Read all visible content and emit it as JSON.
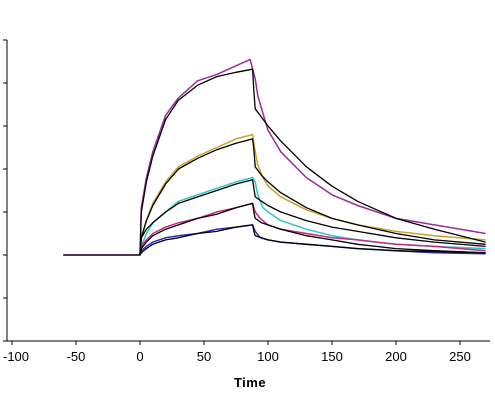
{
  "chart_data": {
    "type": "line",
    "title": "",
    "xlabel": "Time",
    "ylabel": "",
    "xlim": [
      -100,
      270
    ],
    "ylim": [
      0,
      70
    ],
    "xticks": [
      -100,
      -50,
      0,
      50,
      100,
      150,
      200,
      250
    ],
    "yticks": [
      0,
      10,
      20,
      30,
      40,
      50,
      60,
      70
    ],
    "x_tick_labels": [
      "-100",
      "-50",
      "0",
      "50",
      "100",
      "150",
      "200",
      "250"
    ],
    "legend": "none",
    "grid": false,
    "series": [
      {
        "role": "measured",
        "color": "#9b2b9b",
        "x": [
          -60,
          -30,
          -1,
          0,
          1,
          5,
          10,
          20,
          30,
          45,
          60,
          75,
          86,
          90,
          92,
          96,
          100,
          110,
          130,
          150,
          170,
          200,
          230,
          270
        ],
        "y": [
          20,
          20,
          20,
          20,
          31,
          38,
          44,
          52.5,
          56.5,
          60.5,
          62,
          64,
          65.5,
          61,
          57,
          53,
          49,
          44,
          38,
          34,
          31.5,
          28.5,
          27,
          25
        ]
      },
      {
        "role": "fit",
        "color": "#000000",
        "x": [
          -60,
          -30,
          -1,
          0,
          1,
          5,
          10,
          20,
          30,
          45,
          60,
          75,
          88,
          89,
          90,
          95,
          100,
          110,
          130,
          150,
          170,
          200,
          230,
          270
        ],
        "y": [
          20,
          20,
          20,
          20,
          30,
          37,
          43,
          51.5,
          56,
          59.5,
          61.5,
          62.5,
          63.2,
          58,
          54,
          52,
          50,
          46.5,
          40.5,
          36,
          32.5,
          28.5,
          26,
          23
        ]
      },
      {
        "role": "measured",
        "color": "#c9a227",
        "x": [
          0,
          1,
          5,
          10,
          20,
          30,
          45,
          60,
          75,
          88,
          90,
          92,
          96,
          100,
          110,
          130,
          150,
          170,
          200,
          230,
          270
        ],
        "y": [
          20,
          24,
          28,
          32,
          37,
          40.5,
          43,
          45,
          47,
          48,
          44,
          41,
          38,
          36,
          33.5,
          30.5,
          28.5,
          27,
          25.5,
          24.5,
          23.5
        ]
      },
      {
        "role": "fit",
        "color": "#000000",
        "x": [
          0,
          1,
          5,
          10,
          20,
          30,
          45,
          60,
          75,
          88,
          89,
          90,
          95,
          100,
          110,
          130,
          150,
          170,
          200,
          230,
          270
        ],
        "y": [
          20,
          24,
          28,
          31.5,
          36.5,
          40,
          42.5,
          44.5,
          46,
          47,
          44.5,
          40.5,
          38.5,
          37,
          34.5,
          31,
          28.5,
          27,
          25,
          23.5,
          22.5
        ]
      },
      {
        "role": "measured",
        "color": "#2fc4c4",
        "x": [
          0,
          1,
          5,
          10,
          20,
          30,
          45,
          60,
          75,
          88,
          90,
          92,
          96,
          100,
          110,
          130,
          150,
          170,
          200,
          230,
          270
        ],
        "y": [
          20,
          22,
          25,
          27.5,
          30,
          32.5,
          34,
          35.5,
          37,
          38,
          37,
          34,
          31,
          30,
          28,
          26,
          24.5,
          23.5,
          22.5,
          22,
          21.5
        ]
      },
      {
        "role": "fit",
        "color": "#000000",
        "x": [
          0,
          1,
          5,
          10,
          20,
          30,
          45,
          60,
          75,
          88,
          89,
          90,
          95,
          100,
          110,
          130,
          150,
          170,
          200,
          230,
          270
        ],
        "y": [
          20,
          24,
          26,
          27.5,
          30,
          32,
          33.5,
          35,
          36.5,
          37.5,
          35.5,
          33.5,
          32.5,
          31.5,
          30,
          28,
          26.5,
          25.5,
          24,
          23,
          22
        ]
      },
      {
        "role": "measured",
        "color": "#c22a8a",
        "x": [
          0,
          1,
          5,
          10,
          20,
          30,
          45,
          60,
          75,
          88,
          90,
          94,
          100,
          110,
          130,
          150,
          170,
          200,
          230,
          270
        ],
        "y": [
          20,
          22,
          23.5,
          25,
          26.5,
          27.5,
          28.5,
          30,
          31,
          32,
          30,
          28.5,
          27,
          26,
          25,
          24,
          23.5,
          22.5,
          22,
          21
        ]
      },
      {
        "role": "fit",
        "color": "#000000",
        "x": [
          0,
          1,
          5,
          10,
          20,
          30,
          45,
          60,
          75,
          88,
          89,
          90,
          95,
          100,
          110,
          130,
          150,
          170,
          200,
          230,
          270
        ],
        "y": [
          20,
          21.5,
          23,
          24.5,
          26,
          27,
          28.5,
          29.5,
          31,
          32,
          30,
          28.5,
          27.5,
          27,
          26,
          24.5,
          23.5,
          22.5,
          21.5,
          21,
          20.5
        ]
      },
      {
        "role": "measured",
        "color": "#2b2bb5",
        "x": [
          0,
          1,
          5,
          10,
          20,
          30,
          45,
          60,
          75,
          88,
          90,
          94,
          100,
          110,
          130,
          150,
          170,
          200,
          230,
          270
        ],
        "y": [
          20,
          21,
          22,
          23,
          24,
          24.5,
          25,
          26,
          26.5,
          27,
          25.5,
          24,
          23.5,
          23,
          22.5,
          22,
          21.5,
          21,
          20.5,
          20.3
        ]
      },
      {
        "role": "fit",
        "color": "#000000",
        "x": [
          0,
          1,
          5,
          10,
          20,
          30,
          45,
          60,
          75,
          88,
          89,
          90,
          95,
          100,
          110,
          130,
          150,
          170,
          200,
          230,
          270
        ],
        "y": [
          20,
          20.5,
          21.5,
          22.5,
          23.5,
          24,
          25,
          25.5,
          26.5,
          27,
          25.5,
          24.5,
          24,
          23.5,
          23,
          22.5,
          22,
          21.5,
          21,
          20.8,
          20.5
        ]
      }
    ]
  }
}
